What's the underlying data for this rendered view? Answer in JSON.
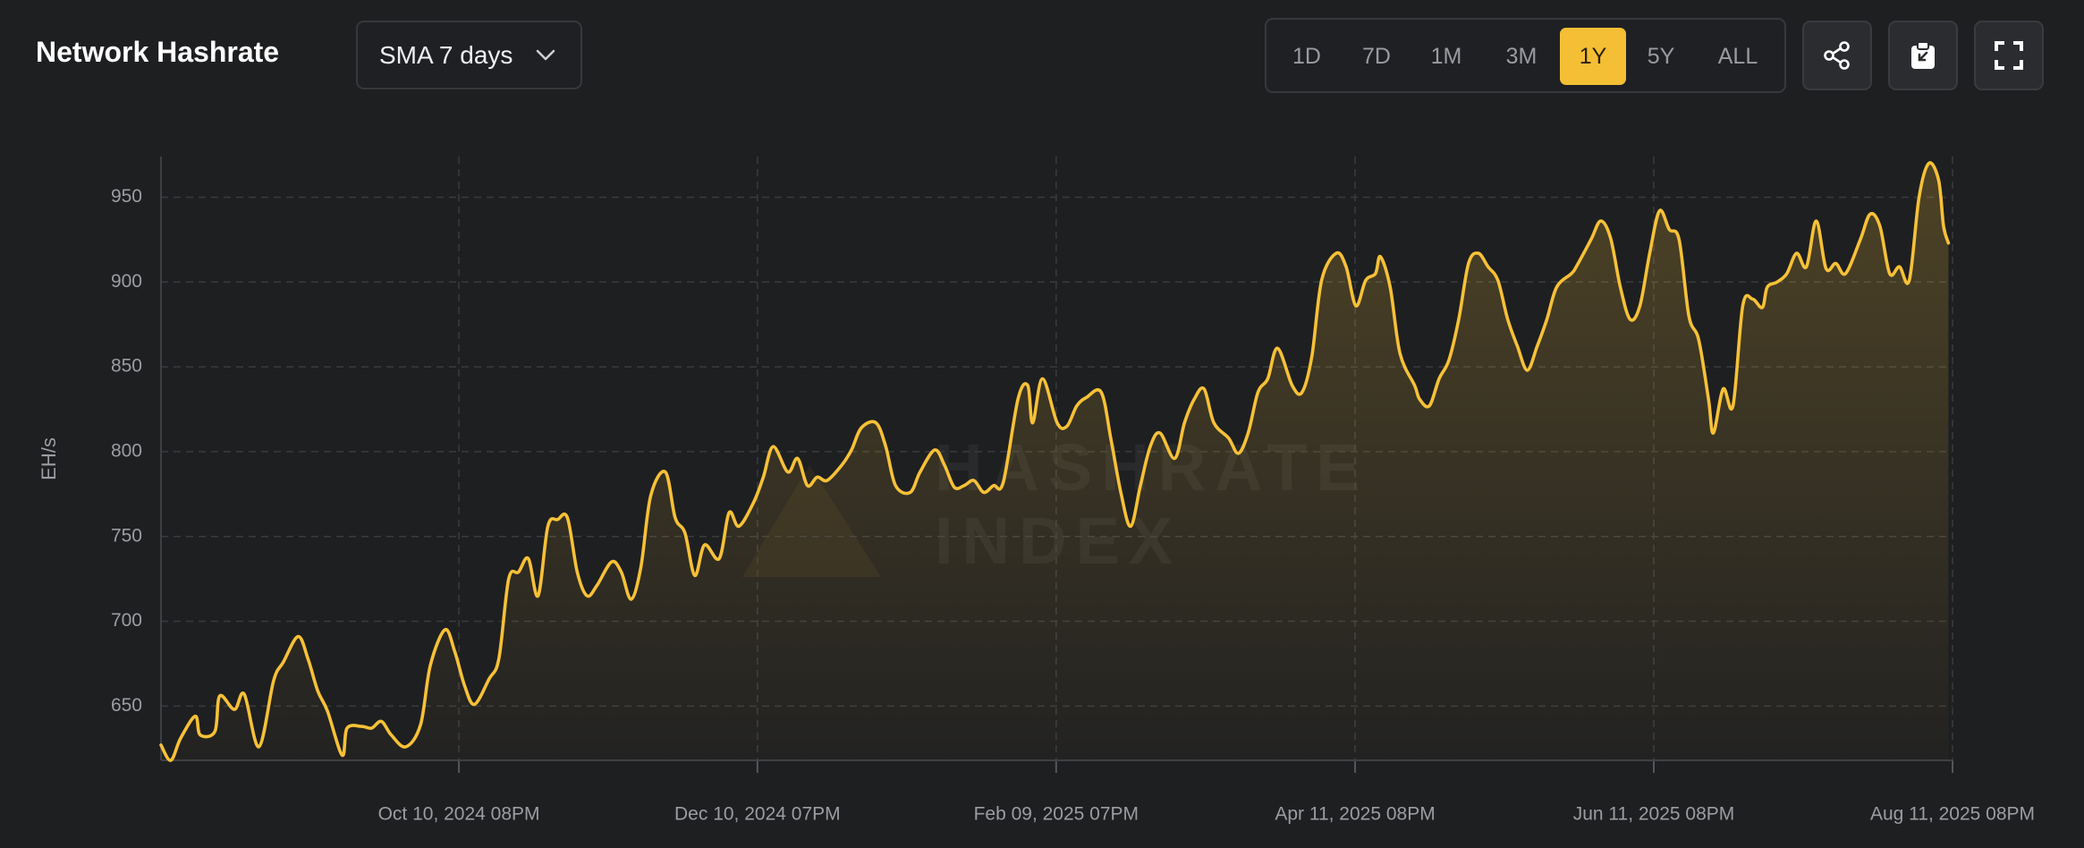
{
  "header": {
    "title": "Network Hashrate",
    "dropdown": "SMA 7 days",
    "ranges": [
      "1D",
      "7D",
      "1M",
      "3M",
      "1Y",
      "5Y",
      "ALL"
    ],
    "selected": "1Y"
  },
  "chart_data": {
    "type": "line",
    "y_label": "EH/s",
    "watermark": [
      "HASHRATE",
      "INDEX"
    ],
    "color": "#f7c137",
    "grid": true,
    "xlim": [
      "2024-08-11",
      "2025-08-11T20:00"
    ],
    "xticks": [
      {
        "value": "2024-10-10T20:00",
        "label": "Oct 10, 2024 08PM"
      },
      {
        "value": "2024-12-10T19:00",
        "label": "Dec 10, 2024 07PM"
      },
      {
        "value": "2025-02-09T19:00",
        "label": "Feb 09, 2025 07PM"
      },
      {
        "value": "2025-04-11T20:00",
        "label": "Apr 11, 2025 08PM"
      },
      {
        "value": "2025-06-11T20:00",
        "label": "Jun 11, 2025 08PM"
      },
      {
        "value": "2025-08-11T20:00",
        "label": "Aug 11, 2025 08PM"
      }
    ],
    "ylim": [
      618,
      974
    ],
    "yticks": [
      650,
      700,
      750,
      800,
      850,
      900,
      950
    ],
    "x": [
      "2024-08-11",
      "2024-08-13",
      "2024-08-15",
      "2024-08-18",
      "2024-08-19",
      "2024-08-22",
      "2024-08-23",
      "2024-08-26",
      "2024-08-28",
      "2024-08-31",
      "2024-09-03",
      "2024-09-05",
      "2024-09-08",
      "2024-09-10",
      "2024-09-12",
      "2024-09-14",
      "2024-09-17",
      "2024-09-18",
      "2024-09-21",
      "2024-09-23",
      "2024-09-25",
      "2024-09-27",
      "2024-09-30",
      "2024-10-03",
      "2024-10-05",
      "2024-10-08",
      "2024-10-10",
      "2024-10-12",
      "2024-10-14",
      "2024-10-17",
      "2024-10-19",
      "2024-10-21",
      "2024-10-23",
      "2024-10-25",
      "2024-10-27",
      "2024-10-29",
      "2024-10-31",
      "2024-11-02",
      "2024-11-04",
      "2024-11-06",
      "2024-11-08",
      "2024-11-11",
      "2024-11-13",
      "2024-11-15",
      "2024-11-17",
      "2024-11-19",
      "2024-11-22",
      "2024-11-24",
      "2024-11-26",
      "2024-11-28",
      "2024-11-30",
      "2024-12-03",
      "2024-12-05",
      "2024-12-07",
      "2024-12-10",
      "2024-12-12",
      "2024-12-14",
      "2024-12-17",
      "2024-12-19",
      "2024-12-21",
      "2024-12-23",
      "2024-12-25",
      "2024-12-28",
      "2024-12-30",
      "2025-01-01",
      "2025-01-04",
      "2025-01-06",
      "2025-01-08",
      "2025-01-11",
      "2025-01-13",
      "2025-01-16",
      "2025-01-18",
      "2025-01-20",
      "2025-01-22",
      "2025-01-24",
      "2025-01-26",
      "2025-01-28",
      "2025-01-30",
      "2025-02-02",
      "2025-02-04",
      "2025-02-05",
      "2025-02-07",
      "2025-02-10",
      "2025-02-12",
      "2025-02-14",
      "2025-02-16",
      "2025-02-19",
      "2025-02-21",
      "2025-02-23",
      "2025-02-25",
      "2025-02-27",
      "2025-03-01",
      "2025-03-03",
      "2025-03-06",
      "2025-03-08",
      "2025-03-10",
      "2025-03-12",
      "2025-03-14",
      "2025-03-17",
      "2025-03-19",
      "2025-03-21",
      "2025-03-23",
      "2025-03-25",
      "2025-03-27",
      "2025-03-30",
      "2025-04-01",
      "2025-04-03",
      "2025-04-05",
      "2025-04-08",
      "2025-04-10",
      "2025-04-12",
      "2025-04-14",
      "2025-04-16",
      "2025-04-17",
      "2025-04-19",
      "2025-04-21",
      "2025-04-24",
      "2025-04-25",
      "2025-04-27",
      "2025-04-29",
      "2025-05-01",
      "2025-05-03",
      "2025-05-05",
      "2025-05-07",
      "2025-05-09",
      "2025-05-11",
      "2025-05-13",
      "2025-05-15",
      "2025-05-17",
      "2025-05-19",
      "2025-05-21",
      "2025-05-23",
      "2025-05-26",
      "2025-05-27",
      "2025-05-30",
      "2025-06-01",
      "2025-06-03",
      "2025-06-05",
      "2025-06-07",
      "2025-06-09",
      "2025-06-11",
      "2025-06-13",
      "2025-06-15",
      "2025-06-17",
      "2025-06-19",
      "2025-06-21",
      "2025-06-23",
      "2025-06-24",
      "2025-06-26",
      "2025-06-28",
      "2025-06-30",
      "2025-07-02",
      "2025-07-04",
      "2025-07-05",
      "2025-07-07",
      "2025-07-09",
      "2025-07-11",
      "2025-07-13",
      "2025-07-15",
      "2025-07-17",
      "2025-07-19",
      "2025-07-21",
      "2025-07-24",
      "2025-07-26",
      "2025-07-28",
      "2025-07-30",
      "2025-08-01",
      "2025-08-03",
      "2025-08-05",
      "2025-08-07",
      "2025-08-09",
      "2025-08-10",
      "2025-08-11"
    ],
    "values": [
      627,
      618,
      631,
      644,
      633,
      635,
      656,
      648,
      657,
      626,
      665,
      676,
      691,
      678,
      659,
      647,
      621,
      637,
      638,
      637,
      641,
      633,
      626,
      639,
      674,
      695,
      682,
      662,
      651,
      666,
      678,
      725,
      729,
      737,
      715,
      756,
      760,
      761,
      729,
      715,
      721,
      735,
      729,
      713,
      732,
      774,
      788,
      761,
      752,
      727,
      745,
      737,
      764,
      756,
      770,
      785,
      803,
      788,
      796,
      780,
      785,
      783,
      792,
      801,
      814,
      817,
      803,
      780,
      776,
      788,
      801,
      792,
      779,
      780,
      783,
      776,
      780,
      782,
      831,
      839,
      817,
      843,
      817,
      815,
      827,
      832,
      835,
      807,
      776,
      756,
      780,
      803,
      811,
      796,
      817,
      831,
      837,
      817,
      808,
      799,
      811,
      835,
      843,
      861,
      839,
      835,
      856,
      901,
      917,
      909,
      886,
      901,
      905,
      915,
      897,
      858,
      839,
      831,
      827,
      843,
      854,
      878,
      911,
      917,
      909,
      901,
      878,
      862,
      848,
      862,
      878,
      897,
      905,
      909,
      925,
      936,
      926,
      897,
      878,
      886,
      917,
      942,
      931,
      925,
      880,
      866,
      831,
      811,
      837,
      827,
      886,
      890,
      885,
      897,
      900,
      905,
      917,
      909,
      936,
      908,
      911,
      905,
      925,
      940,
      933,
      905,
      909,
      901,
      950,
      970,
      960,
      933,
      923
    ]
  }
}
